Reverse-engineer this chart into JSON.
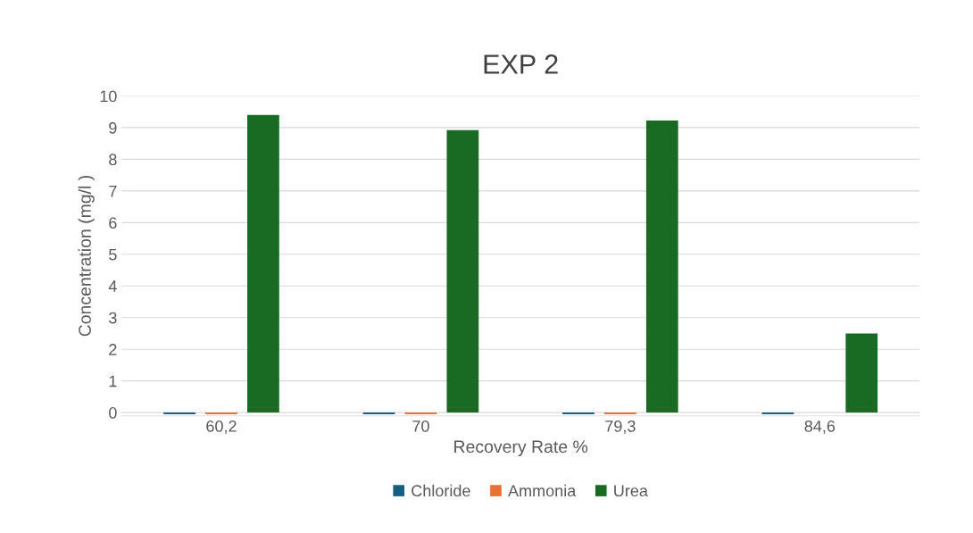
{
  "chart_data": {
    "type": "bar",
    "title": "EXP 2",
    "xlabel": "Recovery Rate %",
    "ylabel": "Concentration (mg/l )",
    "categories": [
      "60,2",
      "70",
      "79,3",
      "84,6"
    ],
    "series": [
      {
        "name": "Chloride",
        "color": "#156082",
        "values": [
          -0.05,
          -0.05,
          -0.05,
          -0.05
        ]
      },
      {
        "name": "Ammonia",
        "color": "#e97132",
        "values": [
          -0.05,
          -0.05,
          -0.05,
          null
        ]
      },
      {
        "name": "Urea",
        "color": "#196b24",
        "values": [
          9.4,
          8.92,
          9.22,
          2.5
        ]
      }
    ],
    "ylim": [
      -0.1,
      10
    ],
    "yticks": [
      0,
      1,
      2,
      3,
      4,
      5,
      6,
      7,
      8,
      9,
      10
    ],
    "grid": "y",
    "legend": "bottom"
  }
}
